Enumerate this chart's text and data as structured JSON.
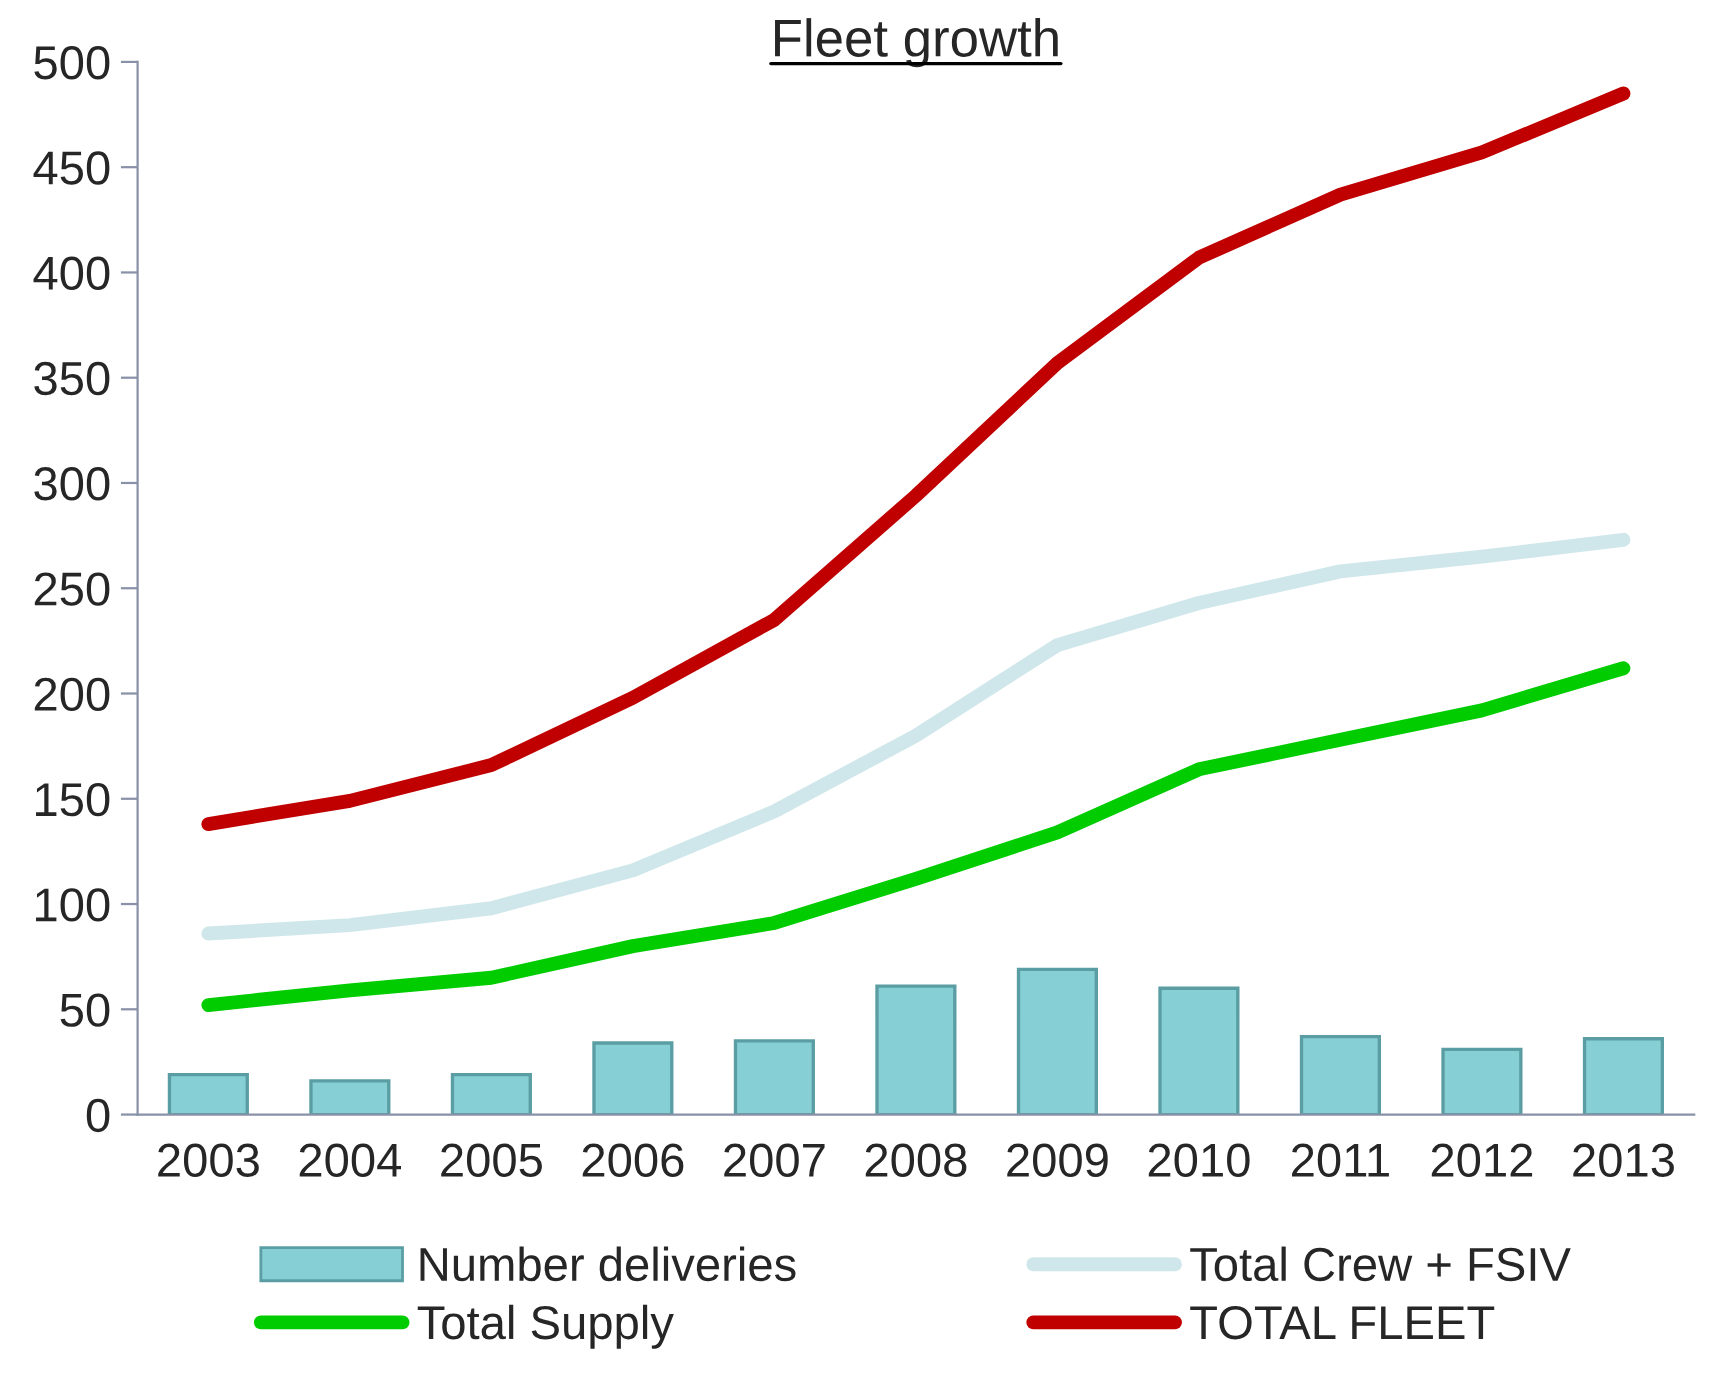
{
  "chart_data": {
    "type": "line",
    "title": "Fleet growth",
    "categories": [
      "2003",
      "2004",
      "2005",
      "2006",
      "2007",
      "2008",
      "2009",
      "2010",
      "2011",
      "2012",
      "2013"
    ],
    "series": [
      {
        "name": "Number deliveries",
        "type": "bar",
        "color": "#86cfd4",
        "values": [
          19,
          16,
          19,
          34,
          35,
          61,
          69,
          60,
          37,
          31,
          36
        ]
      },
      {
        "name": "Total Crew + FSIV",
        "color": "#cfe7ea",
        "values": [
          86,
          90,
          98,
          116,
          144,
          180,
          223,
          243,
          258,
          265,
          273
        ]
      },
      {
        "name": "Total Supply",
        "color": "#00cc00",
        "values": [
          52,
          59,
          65,
          80,
          91,
          112,
          134,
          164,
          178,
          192,
          212
        ]
      },
      {
        "name": "TOTAL FLEET",
        "color": "#c00000",
        "values": [
          138,
          149,
          166,
          198,
          235,
          294,
          357,
          407,
          437,
          457,
          485
        ]
      }
    ],
    "ylim": [
      0,
      500
    ],
    "yticks": [
      0,
      50,
      100,
      150,
      200,
      250,
      300,
      350,
      400,
      450,
      500
    ],
    "grid": false,
    "legend": "bottom",
    "marker": "none",
    "line_style": "solid"
  }
}
